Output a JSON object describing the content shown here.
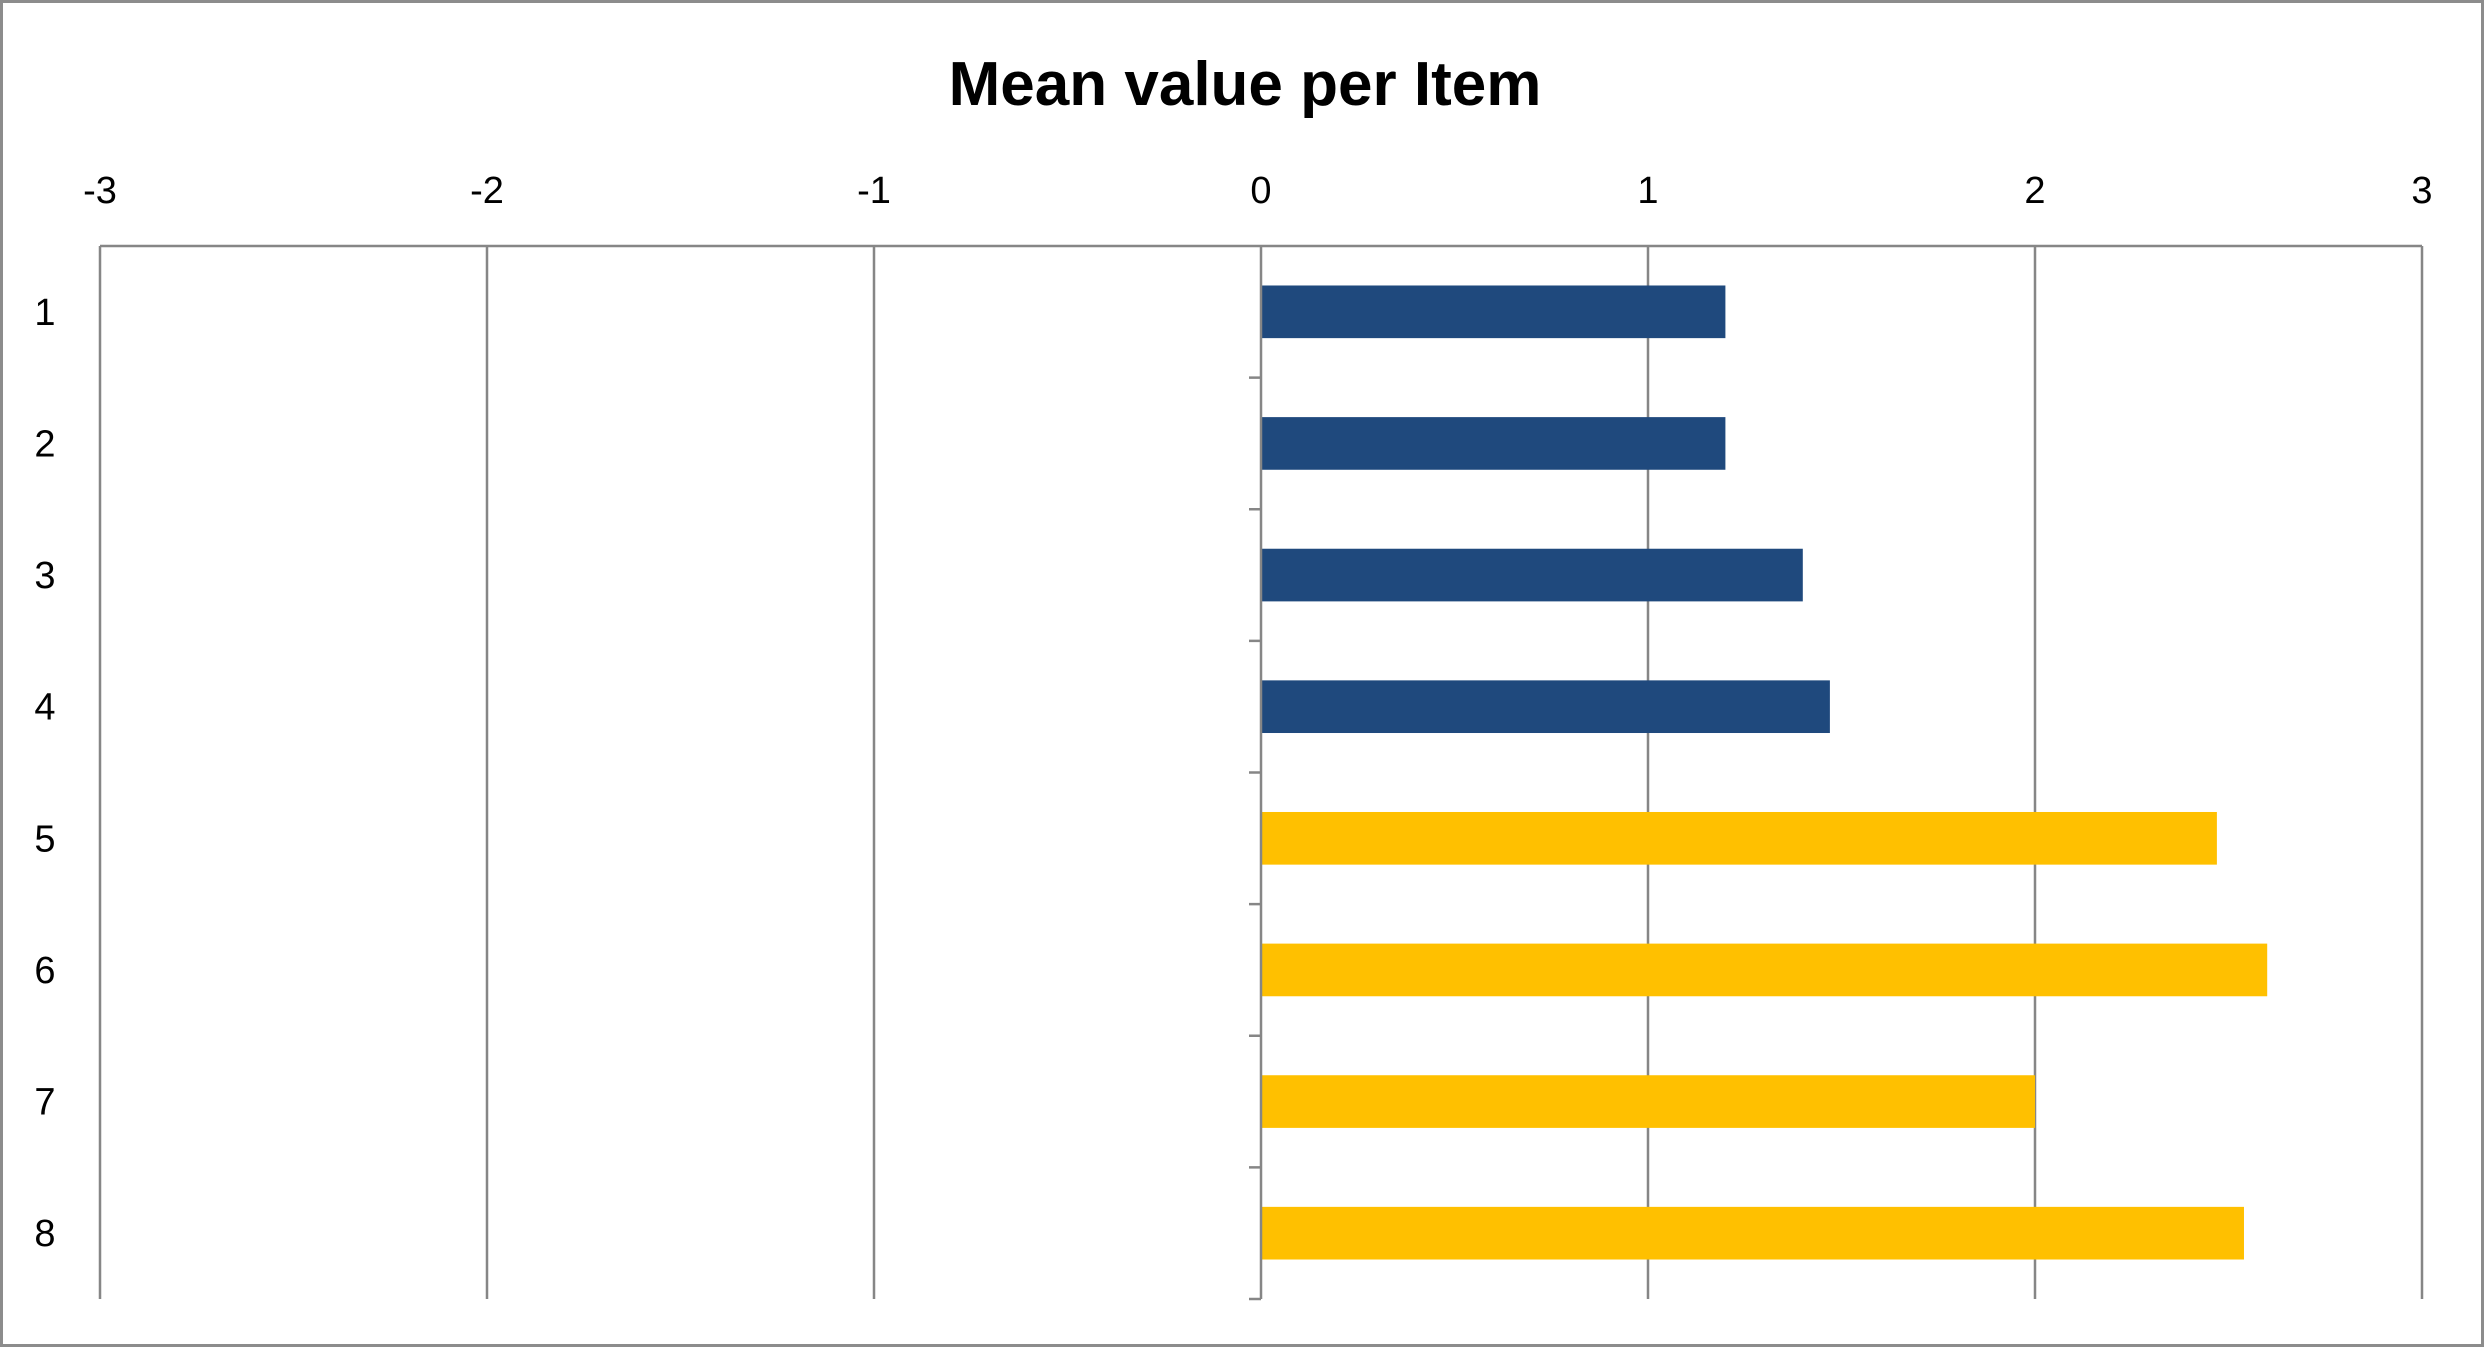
{
  "chart_data": {
    "type": "bar",
    "orientation": "horizontal",
    "title": "Mean value per Item",
    "xlabel": "",
    "ylabel": "",
    "xlim": [
      -3,
      3
    ],
    "x_ticks": [
      -3,
      -2,
      -1,
      0,
      1,
      2,
      3
    ],
    "x_axis_position": "top",
    "grid": "vertical major gridlines",
    "legend": "none",
    "categories": [
      "1",
      "2",
      "3",
      "4",
      "5",
      "6",
      "7",
      "8"
    ],
    "values": [
      1.2,
      1.2,
      1.4,
      1.47,
      2.47,
      2.6,
      2.0,
      2.54
    ],
    "bar_colors": [
      "#1f497d",
      "#1f497d",
      "#1f497d",
      "#1f497d",
      "#ffc000",
      "#ffc000",
      "#ffc000",
      "#ffc000"
    ]
  }
}
